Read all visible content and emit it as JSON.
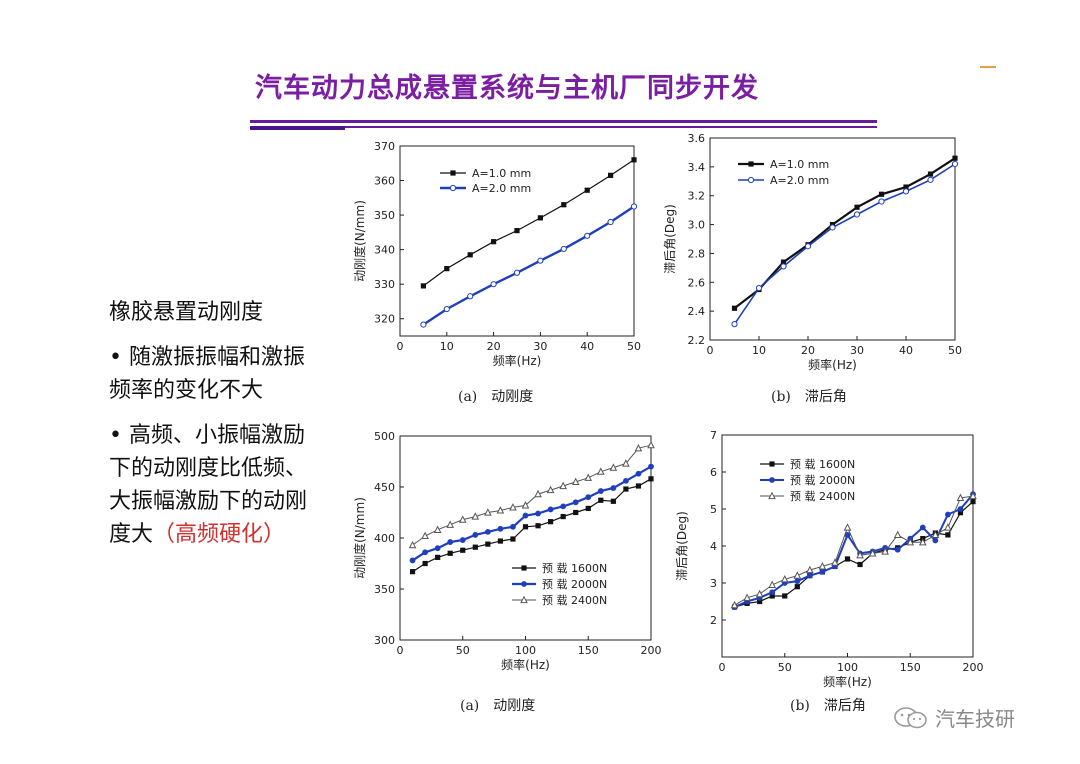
{
  "slide": {
    "title": "汽车动力总成悬置系统与主机厂同步开发",
    "text_heading": "橡胶悬置动刚度",
    "bullet1": "• 随激振振幅和激振频率的变化不大",
    "bullet2_main": "• 高频、小振幅激励下的动刚度比低频、大振幅激励下的动刚度大",
    "bullet2_red": "（高频硬化）",
    "captions": {
      "top_a": "(a)　动刚度",
      "top_b": "(b)　滞后角",
      "bot_a": "(a)　动刚度",
      "bot_b": "(b)　滞后角"
    },
    "watermark": "汽车技研",
    "colors": {
      "title": "#7b1fa2",
      "rule": "#6a1b9a",
      "series_black": "#111111",
      "series_blue": "#1f3fbf",
      "series_gray": "#555555",
      "highlight_red": "#d32f2f"
    }
  },
  "chart_data": [
    {
      "type": "line",
      "xlabel": "频率(Hz)",
      "ylabel": "动刚度(N/mm)",
      "xlim": [
        0,
        50
      ],
      "ylim": [
        315,
        370
      ],
      "xticks": [
        0,
        10,
        20,
        30,
        40,
        50
      ],
      "yticks": [
        320,
        330,
        340,
        350,
        360,
        370
      ],
      "legend_position": "top-left",
      "series": [
        {
          "name": "A=1.0 mm",
          "color": "#111111",
          "marker": "square",
          "x": [
            5,
            10,
            15,
            20,
            25,
            30,
            35,
            40,
            45,
            50
          ],
          "y": [
            329.5,
            334.5,
            338.5,
            342.3,
            345.5,
            349.2,
            353.0,
            357.2,
            361.5,
            366.0
          ]
        },
        {
          "name": "A=2.0 mm",
          "color": "#1f3fbf",
          "marker": "circle-open",
          "x": [
            5,
            10,
            15,
            20,
            25,
            30,
            35,
            40,
            45,
            50
          ],
          "y": [
            318.3,
            322.8,
            326.5,
            330.0,
            333.3,
            336.8,
            340.2,
            344.0,
            348.0,
            352.5
          ]
        }
      ]
    },
    {
      "type": "line",
      "xlabel": "频率(Hz)",
      "ylabel": "滞后角(Deg)",
      "xlim": [
        0,
        50
      ],
      "ylim": [
        2.2,
        3.6
      ],
      "xticks": [
        0,
        10,
        20,
        30,
        40,
        50
      ],
      "yticks": [
        2.2,
        2.4,
        2.6,
        2.8,
        3.0,
        3.2,
        3.4,
        3.6
      ],
      "legend_position": "top-left",
      "series": [
        {
          "name": "A=1.0 mm",
          "color": "#111111",
          "marker": "square",
          "x": [
            5,
            10,
            15,
            20,
            25,
            30,
            35,
            40,
            45,
            50
          ],
          "y": [
            2.42,
            2.55,
            2.74,
            2.86,
            3.0,
            3.12,
            3.21,
            3.26,
            3.35,
            3.46
          ]
        },
        {
          "name": "A=2.0 mm",
          "color": "#1f3fbf",
          "marker": "circle-open",
          "x": [
            5,
            10,
            15,
            20,
            25,
            30,
            35,
            40,
            45,
            50
          ],
          "y": [
            2.31,
            2.56,
            2.71,
            2.85,
            2.98,
            3.07,
            3.16,
            3.23,
            3.31,
            3.42
          ]
        }
      ]
    },
    {
      "type": "line",
      "xlabel": "频率(Hz)",
      "ylabel": "动刚度(N/mm)",
      "xlim": [
        0,
        200
      ],
      "ylim": [
        300,
        500
      ],
      "xticks": [
        0,
        50,
        100,
        150,
        200
      ],
      "yticks": [
        300,
        350,
        400,
        450,
        500
      ],
      "legend_position": "bottom-right",
      "series": [
        {
          "name": "预 载 1600N",
          "color": "#111111",
          "marker": "square",
          "x": [
            10,
            20,
            30,
            40,
            50,
            60,
            70,
            80,
            90,
            100,
            110,
            120,
            130,
            140,
            150,
            160,
            170,
            180,
            190,
            200
          ],
          "y": [
            367,
            375,
            381,
            385,
            388,
            391,
            394,
            397,
            399,
            411,
            412,
            416,
            421,
            425,
            429,
            437,
            436,
            448,
            451,
            458
          ]
        },
        {
          "name": "预 载 2000N",
          "color": "#1f3fbf",
          "marker": "circle",
          "x": [
            10,
            20,
            30,
            40,
            50,
            60,
            70,
            80,
            90,
            100,
            110,
            120,
            130,
            140,
            150,
            160,
            170,
            180,
            190,
            200
          ],
          "y": [
            378,
            386,
            390,
            396,
            398,
            403,
            406,
            409,
            411,
            422,
            424,
            428,
            431,
            435,
            440,
            446,
            449,
            456,
            463,
            470
          ]
        },
        {
          "name": "预 载 2400N",
          "color": "#555555",
          "marker": "triangle-open",
          "x": [
            10,
            20,
            30,
            40,
            50,
            60,
            70,
            80,
            90,
            100,
            110,
            120,
            130,
            140,
            150,
            160,
            170,
            180,
            190,
            200
          ],
          "y": [
            393,
            402,
            408,
            413,
            418,
            421,
            425,
            427,
            430,
            432,
            443,
            447,
            451,
            455,
            459,
            465,
            469,
            473,
            488,
            491
          ]
        }
      ]
    },
    {
      "type": "line",
      "xlabel": "频率(Hz)",
      "ylabel": "滞后角(Deg)",
      "xlim": [
        0,
        200
      ],
      "ylim": [
        1,
        7
      ],
      "xticks": [
        0,
        50,
        100,
        150,
        200
      ],
      "yticks": [
        2,
        3,
        4,
        5,
        6,
        7
      ],
      "legend_position": "top-left",
      "series": [
        {
          "name": "预 载 1600N",
          "color": "#111111",
          "marker": "square",
          "x": [
            10,
            20,
            30,
            40,
            50,
            60,
            70,
            80,
            90,
            100,
            110,
            120,
            130,
            140,
            150,
            160,
            170,
            180,
            190,
            200
          ],
          "y": [
            2.35,
            2.45,
            2.5,
            2.65,
            2.65,
            2.9,
            3.2,
            3.3,
            3.45,
            3.65,
            3.5,
            3.8,
            3.9,
            3.95,
            4.1,
            4.2,
            4.35,
            4.3,
            4.9,
            5.2
          ]
        },
        {
          "name": "预 载 2000N",
          "color": "#1f3fbf",
          "marker": "circle",
          "x": [
            10,
            20,
            30,
            40,
            50,
            60,
            70,
            80,
            90,
            100,
            110,
            120,
            130,
            140,
            150,
            160,
            170,
            180,
            190,
            200
          ],
          "y": [
            2.35,
            2.5,
            2.6,
            2.75,
            3.0,
            3.05,
            3.2,
            3.3,
            3.45,
            4.3,
            3.8,
            3.85,
            3.95,
            3.9,
            4.2,
            4.5,
            4.15,
            4.85,
            5.0,
            5.4
          ]
        },
        {
          "name": "预 载 2400N",
          "color": "#555555",
          "marker": "triangle-open",
          "x": [
            10,
            20,
            30,
            40,
            50,
            60,
            70,
            80,
            90,
            100,
            110,
            120,
            130,
            140,
            150,
            160,
            170,
            180,
            190,
            200
          ],
          "y": [
            2.4,
            2.6,
            2.7,
            2.95,
            3.1,
            3.2,
            3.35,
            3.45,
            3.55,
            4.5,
            3.75,
            3.8,
            3.85,
            4.3,
            4.1,
            4.1,
            4.3,
            4.5,
            5.3,
            5.35
          ]
        }
      ]
    }
  ]
}
